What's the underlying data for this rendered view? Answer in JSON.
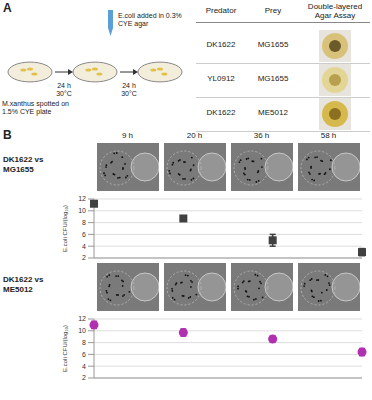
{
  "panel_a": {
    "label": "A",
    "pipette_text": "E.coli added in 0.3% CYE agar",
    "plate_text": "M.xanthus spotted on 1.5% CYE plate",
    "steps": [
      {
        "time": "24 h",
        "temp": "30°C"
      },
      {
        "time": "24 h",
        "temp": "30°C"
      }
    ],
    "table": {
      "header": [
        "Predator",
        "Prey",
        "Double-layered Agar Assay"
      ],
      "rows": [
        [
          "DK1622",
          "MG1655"
        ],
        [
          "YL0912",
          "MG1655"
        ],
        [
          "DK1622",
          "ME5012"
        ]
      ]
    }
  },
  "panel_b": {
    "label": "B",
    "times": [
      "9 h",
      "20 h",
      "36 h",
      "58 h"
    ],
    "rows": [
      "DK1622 vs MG1655",
      "DK1622 vs ME5012"
    ]
  },
  "chart_data": [
    {
      "type": "scatter",
      "categories": [
        null,
        null,
        null,
        null
      ],
      "values": [
        11.2,
        8.7,
        5.0,
        3.0
      ],
      "errors": [
        0.2,
        0.2,
        1.0,
        0.6
      ],
      "color": "#404040",
      "marker": "square",
      "ylim": [
        2,
        12
      ],
      "yticks": [
        2,
        4,
        6,
        8,
        10,
        12
      ],
      "grid": true,
      "tick_labels": "y",
      "y_label": "E.coli CFU/(log₁₀)"
    },
    {
      "type": "scatter",
      "categories": [
        null,
        null,
        null,
        null
      ],
      "values": [
        11.0,
        9.7,
        8.6,
        6.4
      ],
      "errors": [
        0.6,
        0.6,
        0.5,
        0.6
      ],
      "color": "#b030b0",
      "marker": "circle",
      "ylim": [
        2,
        12
      ],
      "yticks": [
        2,
        4,
        6,
        8,
        10,
        12
      ],
      "grid": true,
      "tick_labels": "y",
      "y_label": "E.coli CFU/(log₁₀)"
    }
  ]
}
